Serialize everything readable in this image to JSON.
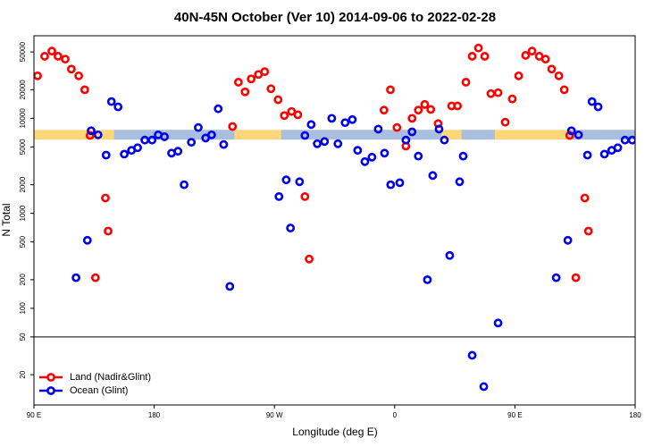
{
  "chart_data": {
    "type": "scatter",
    "title": "40N-45N October (Ver 10)   2014-09-06 to 2022-02-28",
    "x_label": "Longitude (deg E)",
    "y_label": "N Total",
    "log_y": true,
    "xlim": [
      90,
      540
    ],
    "ylim": [
      9.6,
      74000
    ],
    "xticks": [
      {
        "value": 90,
        "label": "90 E"
      },
      180,
      {
        "value": 270,
        "label": "90 W"
      },
      {
        "value": 360,
        "label": "0"
      },
      {
        "value": 450,
        "label": "90 E"
      },
      {
        "value": 540,
        "label": "180"
      }
    ],
    "yticks": [
      20,
      50,
      100,
      200,
      500,
      1000,
      2000,
      5000,
      10000,
      20000,
      50000
    ],
    "hline": 50,
    "band": {
      "range": [
        5970,
        7560
      ],
      "color": "#ffd77a"
    },
    "band_segments": {
      "color": "#a9bfe0",
      "x": [
        [
          150,
          240
        ],
        [
          275,
          395
        ],
        [
          410,
          435
        ],
        [
          490,
          540
        ]
      ]
    },
    "legend": "bottomleft",
    "series": [
      {
        "name": "Land (Nadir&Glint)",
        "color": "#ff0000",
        "x": [
          92.7,
          98,
          103.4,
          108,
          113.4,
          118,
          123.5,
          128,
          132,
          136,
          143.5,
          145.5,
          238.6,
          243,
          248,
          252.6,
          258,
          262.7,
          267.4,
          272.7,
          277.4,
          282.8,
          287.5,
          292.8,
          296,
          352,
          356.8,
          361.7,
          368.4,
          373,
          377.7,
          382.5,
          387,
          392.5,
          402.6,
          407,
          413.3,
          418,
          422.7,
          427.4,
          432,
          437.4,
          442.7,
          448,
          452.8,
          458,
          462.8,
          468.2,
          472.9,
          477.5,
          482.9,
          486.9,
          491,
          495.6,
          502.3,
          505
        ],
        "values": [
          28000,
          45000,
          51000,
          45000,
          42000,
          33000,
          28000,
          20000,
          6600,
          210,
          1450,
          650,
          8200,
          24000,
          19000,
          26000,
          29000,
          31000,
          20500,
          15700,
          10700,
          11800,
          10900,
          1500,
          330,
          12200,
          20000,
          8000,
          5100,
          10000,
          12200,
          14000,
          12400,
          8800,
          13500,
          13500,
          24000,
          45000,
          55000,
          45000,
          18200,
          18600,
          9100,
          16000,
          28000,
          46000,
          51000,
          45000,
          42000,
          33000,
          28000,
          20000,
          6600,
          210,
          1450,
          650
        ]
      },
      {
        "name": "Ocean (Glint)",
        "color": "#0000ee",
        "x": [
          121.5,
          130,
          132.8,
          138,
          144,
          148,
          153,
          157.6,
          163,
          167.6,
          173,
          178.4,
          183,
          187.7,
          193,
          197.8,
          202.4,
          207.8,
          213,
          218.5,
          223,
          227.9,
          232,
          236.6,
          273.4,
          278.8,
          282,
          288.8,
          292.8,
          297.5,
          302,
          307.5,
          312.9,
          317.5,
          322.9,
          328.3,
          332.3,
          337.7,
          343,
          347.7,
          352.4,
          357,
          363.8,
          368.4,
          373,
          377.7,
          384.5,
          388.5,
          393.2,
          397.2,
          401.2,
          408.6,
          411.3,
          418,
          426.7,
          437.4,
          480.9,
          489.6,
          492.3,
          497.6,
          504.3,
          507.7,
          512.3,
          517,
          522.4,
          527,
          532.4,
          537.8
        ],
        "values": [
          210,
          520,
          7400,
          6700,
          4100,
          15000,
          13200,
          4200,
          4600,
          4900,
          5900,
          5900,
          6700,
          6400,
          4300,
          4500,
          2000,
          5600,
          8000,
          6200,
          6700,
          12600,
          5300,
          170,
          1500,
          2250,
          700,
          2150,
          6600,
          8600,
          5400,
          5700,
          10000,
          5400,
          9000,
          9700,
          4600,
          3500,
          3900,
          7700,
          4300,
          2000,
          2100,
          5900,
          7200,
          4000,
          200,
          2500,
          7700,
          5900,
          360,
          2150,
          4000,
          32,
          15,
          70,
          210,
          520,
          7400,
          6700,
          4100,
          15000,
          13200,
          4200,
          4600,
          4900,
          5900,
          5900
        ]
      }
    ]
  }
}
